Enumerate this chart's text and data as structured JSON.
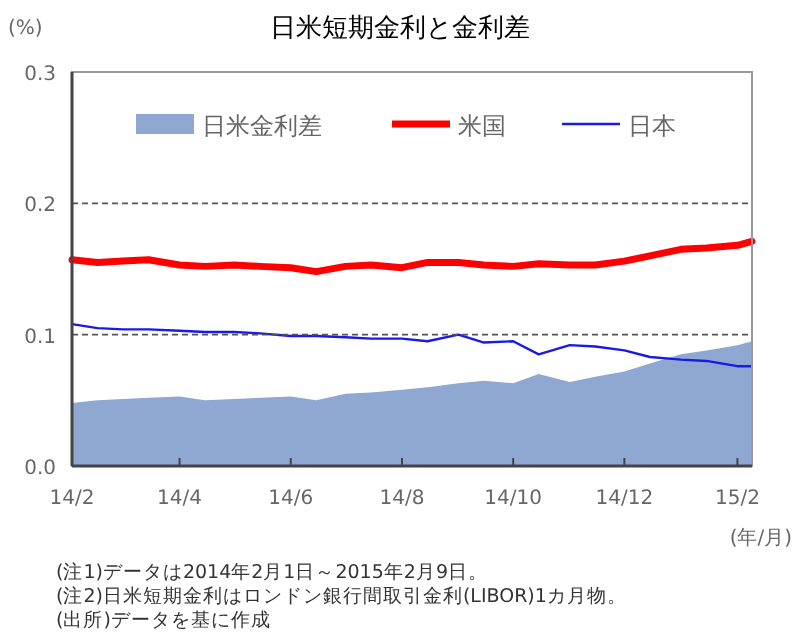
{
  "chart_data": {
    "type": "line",
    "title": "日米短期金利と金利差",
    "ylabel": "(%)",
    "xlabel": "(年/月)",
    "x": [
      "2014-02-01",
      "2014-02-15",
      "2014-03-01",
      "2014-03-15",
      "2014-04-01",
      "2014-04-15",
      "2014-05-01",
      "2014-05-15",
      "2014-06-01",
      "2014-06-15",
      "2014-07-01",
      "2014-07-15",
      "2014-08-01",
      "2014-08-15",
      "2014-09-01",
      "2014-09-15",
      "2014-10-01",
      "2014-10-15",
      "2014-11-01",
      "2014-11-15",
      "2014-12-01",
      "2014-12-15",
      "2015-01-01",
      "2015-01-15",
      "2015-02-01",
      "2015-02-09"
    ],
    "series": [
      {
        "name": "日米金利差",
        "type": "area",
        "color": "#8fa8d2",
        "values": [
          0.048,
          0.05,
          0.051,
          0.052,
          0.053,
          0.05,
          0.051,
          0.052,
          0.053,
          0.05,
          0.055,
          0.056,
          0.058,
          0.06,
          0.063,
          0.065,
          0.063,
          0.07,
          0.064,
          0.068,
          0.072,
          0.078,
          0.085,
          0.088,
          0.092,
          0.095
        ]
      },
      {
        "name": "米国",
        "type": "line",
        "color": "#ff0000",
        "values": [
          0.157,
          0.155,
          0.156,
          0.157,
          0.153,
          0.152,
          0.153,
          0.152,
          0.151,
          0.148,
          0.152,
          0.153,
          0.151,
          0.155,
          0.155,
          0.153,
          0.152,
          0.154,
          0.153,
          0.153,
          0.156,
          0.16,
          0.165,
          0.166,
          0.168,
          0.171
        ]
      },
      {
        "name": "日本",
        "type": "line",
        "color": "#1a1ae6",
        "values": [
          0.108,
          0.105,
          0.104,
          0.104,
          0.103,
          0.102,
          0.102,
          0.101,
          0.099,
          0.099,
          0.098,
          0.097,
          0.097,
          0.095,
          0.1,
          0.094,
          0.095,
          0.085,
          0.092,
          0.091,
          0.088,
          0.083,
          0.081,
          0.08,
          0.076,
          0.076
        ]
      }
    ],
    "xlim": [
      "2014-02-01",
      "2015-02-09"
    ],
    "xticks": [
      {
        "value": "2014-02-01",
        "label": "14/2"
      },
      {
        "value": "2014-04-01",
        "label": "14/4"
      },
      {
        "value": "2014-06-01",
        "label": "14/6"
      },
      {
        "value": "2014-08-01",
        "label": "14/8"
      },
      {
        "value": "2014-10-01",
        "label": "14/10"
      },
      {
        "value": "2014-12-01",
        "label": "14/12"
      },
      {
        "value": "2015-02-01",
        "label": "15/2"
      }
    ],
    "ylim": [
      0,
      0.3
    ],
    "yticks": [
      {
        "value": 0,
        "label": "0.0"
      },
      {
        "value": 0.1,
        "label": "0.1"
      },
      {
        "value": 0.2,
        "label": "0.2"
      },
      {
        "value": 0.3,
        "label": "0.3"
      }
    ],
    "grid": "y",
    "legend": "top",
    "annotations": [
      "(注1)データは2014年2月1日～2015年2月9日。",
      "(注2)日米短期金利はロンドン銀行間取引金利(LIBOR)1カ月物。",
      "(出所)データを基に作成"
    ]
  }
}
